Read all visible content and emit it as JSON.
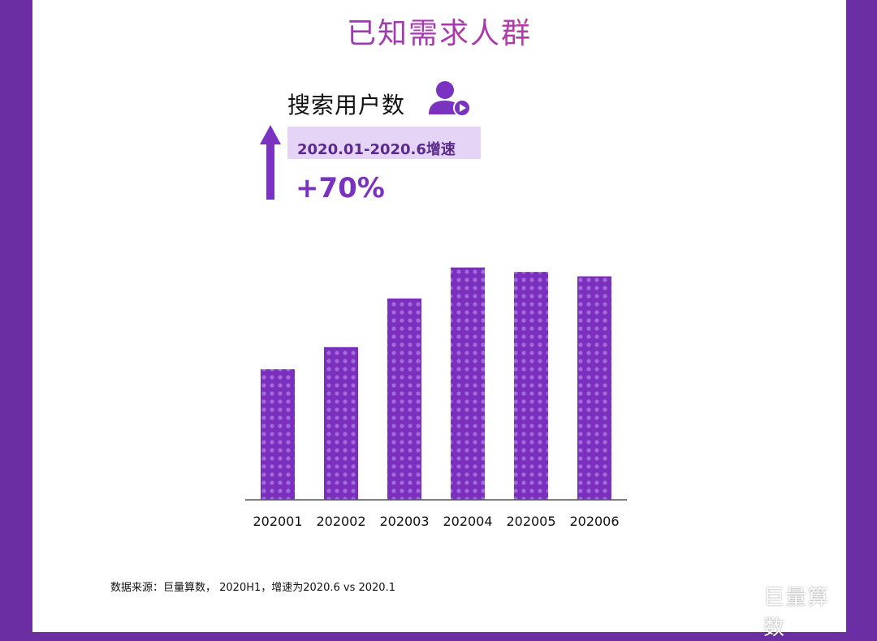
{
  "title": "已知需求人群",
  "metric": {
    "label": "搜索用户数",
    "growth_label": "2020.01-2020.6增速",
    "growth_value": "+70%"
  },
  "icons": [
    "user-play-icon",
    "up-arrow-icon",
    "wechat-icon"
  ],
  "colors": {
    "bar": "#7b2fbf",
    "bar_dots": "#a46ad8",
    "accent": "#7a32c0",
    "sidebar": "#6b2fa3",
    "highlight_box": "#e6d4f6"
  },
  "chart_data": {
    "type": "bar",
    "categories": [
      "202001",
      "202002",
      "202003",
      "202004",
      "202005",
      "202006"
    ],
    "values": [
      59,
      69,
      91,
      105,
      103,
      101
    ],
    "ylim": [
      0,
      110
    ],
    "grid": false,
    "legend": "none"
  },
  "footer": {
    "source": "数据来源：巨量算数， 2020H1，增速为2020.6 vs 2020.1",
    "brand": "巨量算数"
  }
}
